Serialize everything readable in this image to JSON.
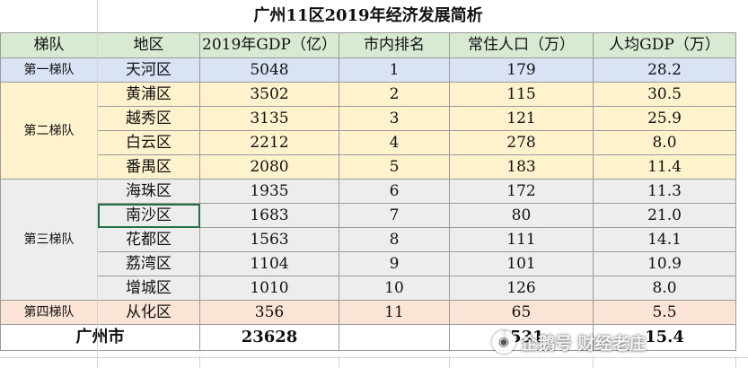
{
  "title": "广州11区2019年经济发展简析",
  "headers": [
    "梯队",
    "地区",
    "2019年GDP（亿）",
    "市内排名",
    "常住人口（万）",
    "人均GDP（万）"
  ],
  "tiers": [
    "第一梯队",
    "第二梯队",
    "第三梯队",
    "第四梯队"
  ],
  "rows": [
    {
      "district": "天河区",
      "gdp": "5048",
      "rank": "1",
      "population": "179",
      "per_capita": "28.2"
    },
    {
      "district": "黄浦区",
      "gdp": "3502",
      "rank": "2",
      "population": "115",
      "per_capita": "30.5"
    },
    {
      "district": "越秀区",
      "gdp": "3135",
      "rank": "3",
      "population": "121",
      "per_capita": "25.9"
    },
    {
      "district": "白云区",
      "gdp": "2212",
      "rank": "4",
      "population": "278",
      "per_capita": "8.0"
    },
    {
      "district": "番禺区",
      "gdp": "2080",
      "rank": "5",
      "population": "183",
      "per_capita": "11.4"
    },
    {
      "district": "海珠区",
      "gdp": "1935",
      "rank": "6",
      "population": "172",
      "per_capita": "11.3"
    },
    {
      "district": "南沙区",
      "gdp": "1683",
      "rank": "7",
      "population": "80",
      "per_capita": "21.0"
    },
    {
      "district": "花都区",
      "gdp": "1563",
      "rank": "8",
      "population": "111",
      "per_capita": "14.1"
    },
    {
      "district": "荔湾区",
      "gdp": "1104",
      "rank": "9",
      "population": "101",
      "per_capita": "10.9"
    },
    {
      "district": "增城区",
      "gdp": "1010",
      "rank": "10",
      "population": "126",
      "per_capita": "8.0"
    },
    {
      "district": "从化区",
      "gdp": "356",
      "rank": "11",
      "population": "65",
      "per_capita": "5.5"
    }
  ],
  "total": {
    "label": "广州市",
    "gdp": "23628",
    "population": "1531",
    "per_capita": "15.4"
  },
  "watermark": "企鹅号 财经老庄",
  "colors": {
    "header_bg": "#d9ead3",
    "tier1_bg": "#dae3f3",
    "tier2_bg": "#fff2cc",
    "tier3_bg": "#ededed",
    "tier4_bg": "#fbe4d5",
    "selection": "#217346"
  }
}
